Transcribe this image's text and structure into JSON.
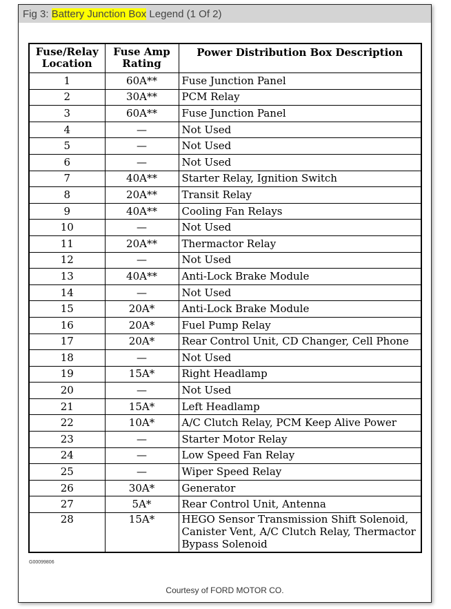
{
  "title": {
    "prefix": "Fig 3: ",
    "highlight": "Battery Junction Box",
    "suffix": " Legend (1 Of 2)"
  },
  "table": {
    "headers": [
      "Fuse/Relay Location",
      "Fuse Amp Rating",
      "Power Distribution Box Description"
    ],
    "rows": [
      [
        "1",
        "60A**",
        "Fuse Junction Panel"
      ],
      [
        "2",
        "30A**",
        "PCM Relay"
      ],
      [
        "3",
        "60A**",
        "Fuse Junction Panel"
      ],
      [
        "4",
        "—",
        "Not Used"
      ],
      [
        "5",
        "—",
        "Not Used"
      ],
      [
        "6",
        "—",
        "Not Used"
      ],
      [
        "7",
        "40A**",
        "Starter Relay, Ignition Switch"
      ],
      [
        "8",
        "20A**",
        "Transit Relay"
      ],
      [
        "9",
        "40A**",
        "Cooling Fan Relays"
      ],
      [
        "10",
        "—",
        "Not Used"
      ],
      [
        "11",
        "20A**",
        "Thermactor Relay"
      ],
      [
        "12",
        "—",
        "Not Used"
      ],
      [
        "13",
        "40A**",
        "Anti-Lock Brake Module"
      ],
      [
        "14",
        "—",
        "Not Used"
      ],
      [
        "15",
        "20A*",
        "Anti-Lock Brake Module"
      ],
      [
        "16",
        "20A*",
        "Fuel Pump Relay"
      ],
      [
        "17",
        "20A*",
        "Rear Control Unit, CD Changer, Cell Phone"
      ],
      [
        "18",
        "—",
        "Not Used"
      ],
      [
        "19",
        "15A*",
        "Right Headlamp"
      ],
      [
        "20",
        "—",
        "Not Used"
      ],
      [
        "21",
        "15A*",
        "Left Headlamp"
      ],
      [
        "22",
        "10A*",
        "A/C Clutch Relay, PCM Keep Alive Power"
      ],
      [
        "23",
        "—",
        "Starter Motor Relay"
      ],
      [
        "24",
        "—",
        "Low Speed Fan Relay"
      ],
      [
        "25",
        "—",
        "Wiper Speed Relay"
      ],
      [
        "26",
        "30A*",
        "Generator"
      ],
      [
        "27",
        "5A*",
        "Rear Control Unit, Antenna"
      ],
      [
        "28",
        "15A*",
        "HEGO Sensor Transmission Shift Solenoid, Canister Vent, A/C Clutch Relay, Thermactor Bypass Solenoid"
      ]
    ]
  },
  "figure_code": "G00099806",
  "courtesy": "Courtesy of FORD MOTOR CO.",
  "colors": {
    "highlight": "#ffff00",
    "titlebar": "#d4d4d4"
  }
}
